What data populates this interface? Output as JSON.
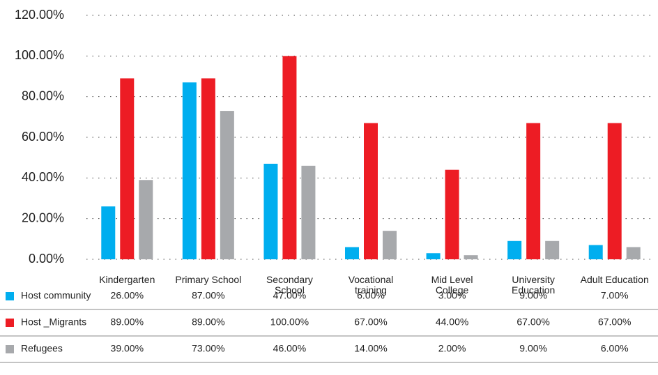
{
  "chart_data": {
    "type": "bar",
    "categories": [
      "Kindergarten",
      "Primary School",
      "Secondary School",
      "Vocational training",
      "Mid Level College",
      "University Education",
      "Adult Education"
    ],
    "series": [
      {
        "name": "Host community",
        "color": "#00aeef",
        "values": [
          26,
          87,
          47,
          6,
          3,
          9,
          7
        ],
        "value_labels": [
          "26.00%",
          "87.00%",
          "47.00%",
          "6.00%",
          "3.00%",
          "9.00%",
          "7.00%"
        ]
      },
      {
        "name": "Host _Migrants",
        "color": "#ed1c24",
        "values": [
          89,
          89,
          100,
          67,
          44,
          67,
          67
        ],
        "value_labels": [
          "89.00%",
          "89.00%",
          "100.00%",
          "67.00%",
          "44.00%",
          "67.00%",
          "67.00%"
        ]
      },
      {
        "name": "Refugees",
        "color": "#a7a9ac",
        "values": [
          39,
          73,
          46,
          14,
          2,
          9,
          6
        ],
        "value_labels": [
          "39.00%",
          "73.00%",
          "46.00%",
          "14.00%",
          "2.00%",
          "9.00%",
          "6.00%"
        ]
      }
    ],
    "ylim": [
      0,
      120
    ],
    "yticks": [
      {
        "value": 0,
        "label": "0.00%"
      },
      {
        "value": 20,
        "label": "20.00%"
      },
      {
        "value": 40,
        "label": "40.00%"
      },
      {
        "value": 60,
        "label": "60.00%"
      },
      {
        "value": 80,
        "label": "80.00%"
      },
      {
        "value": 100,
        "label": "100.00%"
      },
      {
        "value": 120,
        "label": "120.00%"
      }
    ],
    "grid": true
  }
}
